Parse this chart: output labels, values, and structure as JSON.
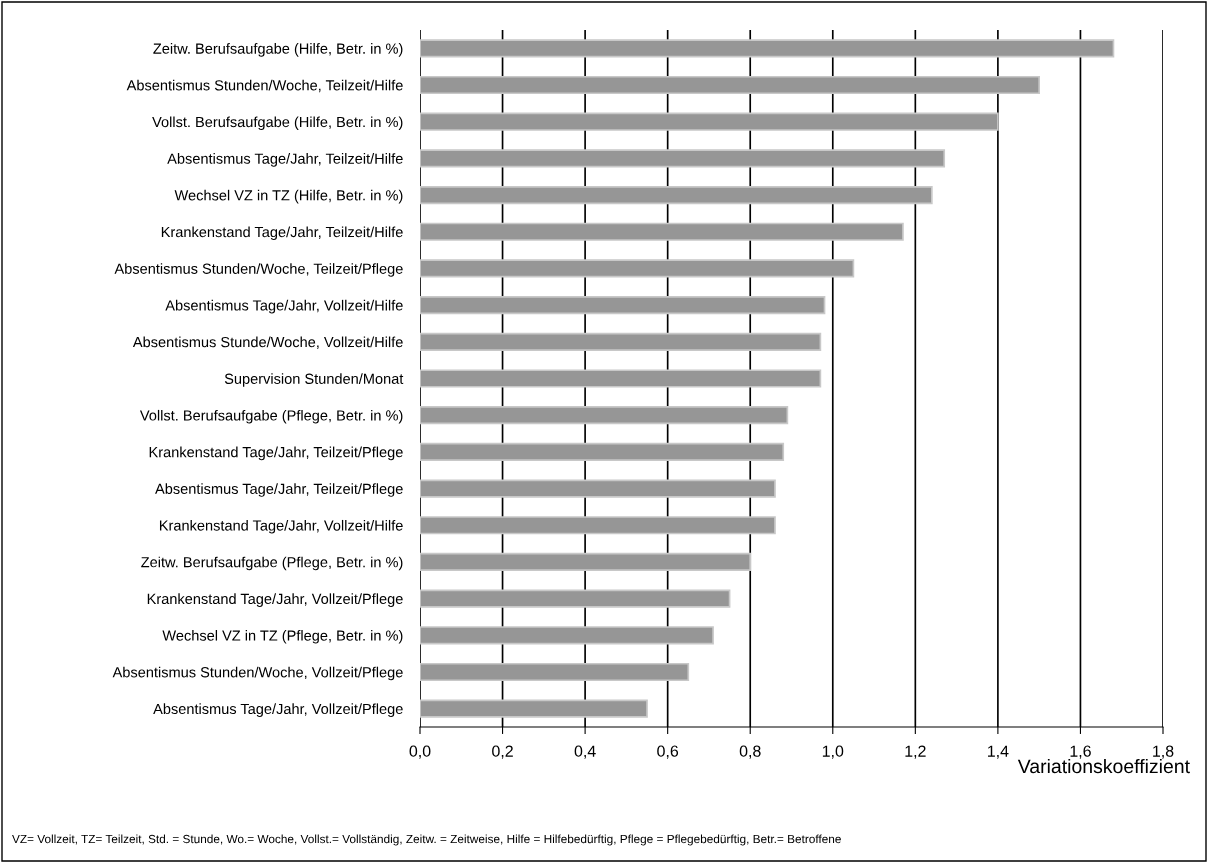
{
  "chart_data": {
    "type": "bar",
    "orientation": "horizontal",
    "xlabel": "Variationskoeffizient",
    "categories": [
      "Zeitw. Berufsaufgabe (Hilfe, Betr. in %)",
      "Absentismus Stunden/Woche, Teilzeit/Hilfe",
      "Vollst. Berufsaufgabe (Hilfe, Betr. in %)",
      "Absentismus Tage/Jahr, Teilzeit/Hilfe",
      "Wechsel VZ in TZ (Hilfe, Betr. in %)",
      "Krankenstand Tage/Jahr, Teilzeit/Hilfe",
      "Absentismus Stunden/Woche, Teilzeit/Pflege",
      "Absentismus Tage/Jahr, Vollzeit/Hilfe",
      "Absentismus Stunde/Woche, Vollzeit/Hilfe",
      "Supervision Stunden/Monat",
      "Vollst. Berufsaufgabe (Pflege, Betr. in %)",
      "Krankenstand Tage/Jahr, Teilzeit/Pflege",
      "Absentismus Tage/Jahr, Teilzeit/Pflege",
      "Krankenstand Tage/Jahr, Vollzeit/Hilfe",
      "Zeitw. Berufsaufgabe (Pflege, Betr. in %)",
      "Krankenstand Tage/Jahr, Vollzeit/Pflege",
      "Wechsel VZ in TZ (Pflege, Betr. in %)",
      "Absentismus Stunden/Woche, Vollzeit/Pflege",
      "Absentismus Tage/Jahr, Vollzeit/Pflege"
    ],
    "values": [
      1.68,
      1.5,
      1.4,
      1.27,
      1.24,
      1.17,
      1.05,
      0.98,
      0.97,
      0.97,
      0.89,
      0.88,
      0.86,
      0.86,
      0.8,
      0.75,
      0.71,
      0.65,
      0.55
    ],
    "color": "#969696",
    "xlim": [
      0,
      1.8
    ],
    "xticks": [
      {
        "value": 0,
        "label": "0,0"
      },
      {
        "value": 0.2,
        "label": "0,2"
      },
      {
        "value": 0.4,
        "label": "0,4"
      },
      {
        "value": 0.6,
        "label": "0,6"
      },
      {
        "value": 0.8,
        "label": "0,8"
      },
      {
        "value": 1.0,
        "label": "1,0"
      },
      {
        "value": 1.2,
        "label": "1,2"
      },
      {
        "value": 1.4,
        "label": "1,4"
      },
      {
        "value": 1.6,
        "label": "1,6"
      },
      {
        "value": 1.8,
        "label": "1,8"
      }
    ],
    "grid": "x",
    "annotations": [
      "VZ= Vollzeit, TZ= Teilzeit, Std. = Stunde, Wo.= Woche, Vollst.= Vollständig, Zeitw. = Zeitweise, Hilfe = Hilfebedürftig, Pflege = Pflegebedürftig, Betr.= Betroffene"
    ]
  }
}
